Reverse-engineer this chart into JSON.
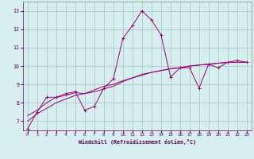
{
  "title": "",
  "xlabel": "Windchill (Refroidissement éolien,°C)",
  "bg_color": "#d6eeee",
  "grid_color": "#aacccc",
  "line_color": "#990077",
  "xlim": [
    -0.5,
    23.5
  ],
  "ylim": [
    6.5,
    13.5
  ],
  "xticks": [
    0,
    1,
    2,
    3,
    4,
    5,
    6,
    7,
    8,
    9,
    10,
    11,
    12,
    13,
    14,
    15,
    16,
    17,
    18,
    19,
    20,
    21,
    22,
    23
  ],
  "yticks": [
    7,
    8,
    9,
    10,
    11,
    12,
    13
  ],
  "series1_x": [
    0,
    1,
    2,
    3,
    4,
    5,
    6,
    7,
    8,
    9,
    10,
    11,
    12,
    13,
    14,
    15,
    16,
    17,
    18,
    19,
    20,
    21,
    22,
    23
  ],
  "series1_y": [
    6.6,
    7.5,
    8.3,
    8.3,
    8.5,
    8.6,
    7.6,
    7.8,
    8.8,
    9.3,
    11.5,
    12.2,
    13.0,
    12.5,
    11.7,
    9.4,
    9.9,
    9.9,
    8.8,
    10.1,
    9.9,
    10.2,
    10.3,
    10.2
  ],
  "series2_x": [
    0,
    1,
    2,
    3,
    4,
    5,
    6,
    7,
    8,
    9,
    10,
    11,
    12,
    13,
    14,
    15,
    16,
    17,
    18,
    19,
    20,
    21,
    22,
    23
  ],
  "series2_y": [
    7.0,
    7.4,
    7.7,
    8.0,
    8.2,
    8.4,
    8.5,
    8.7,
    8.9,
    9.0,
    9.2,
    9.35,
    9.5,
    9.65,
    9.75,
    9.85,
    9.9,
    10.0,
    10.05,
    10.1,
    10.15,
    10.2,
    10.2,
    10.2
  ],
  "series3_x": [
    0,
    1,
    2,
    3,
    4,
    5,
    6,
    7,
    8,
    9,
    10,
    11,
    12,
    13,
    14,
    15,
    16,
    17,
    18,
    19,
    20,
    21,
    22,
    23
  ],
  "series3_y": [
    7.3,
    7.6,
    8.0,
    8.3,
    8.4,
    8.55,
    8.5,
    8.6,
    8.75,
    8.9,
    9.15,
    9.35,
    9.55,
    9.65,
    9.75,
    9.85,
    9.9,
    10.0,
    10.05,
    10.1,
    10.15,
    10.2,
    10.2,
    10.2
  ]
}
